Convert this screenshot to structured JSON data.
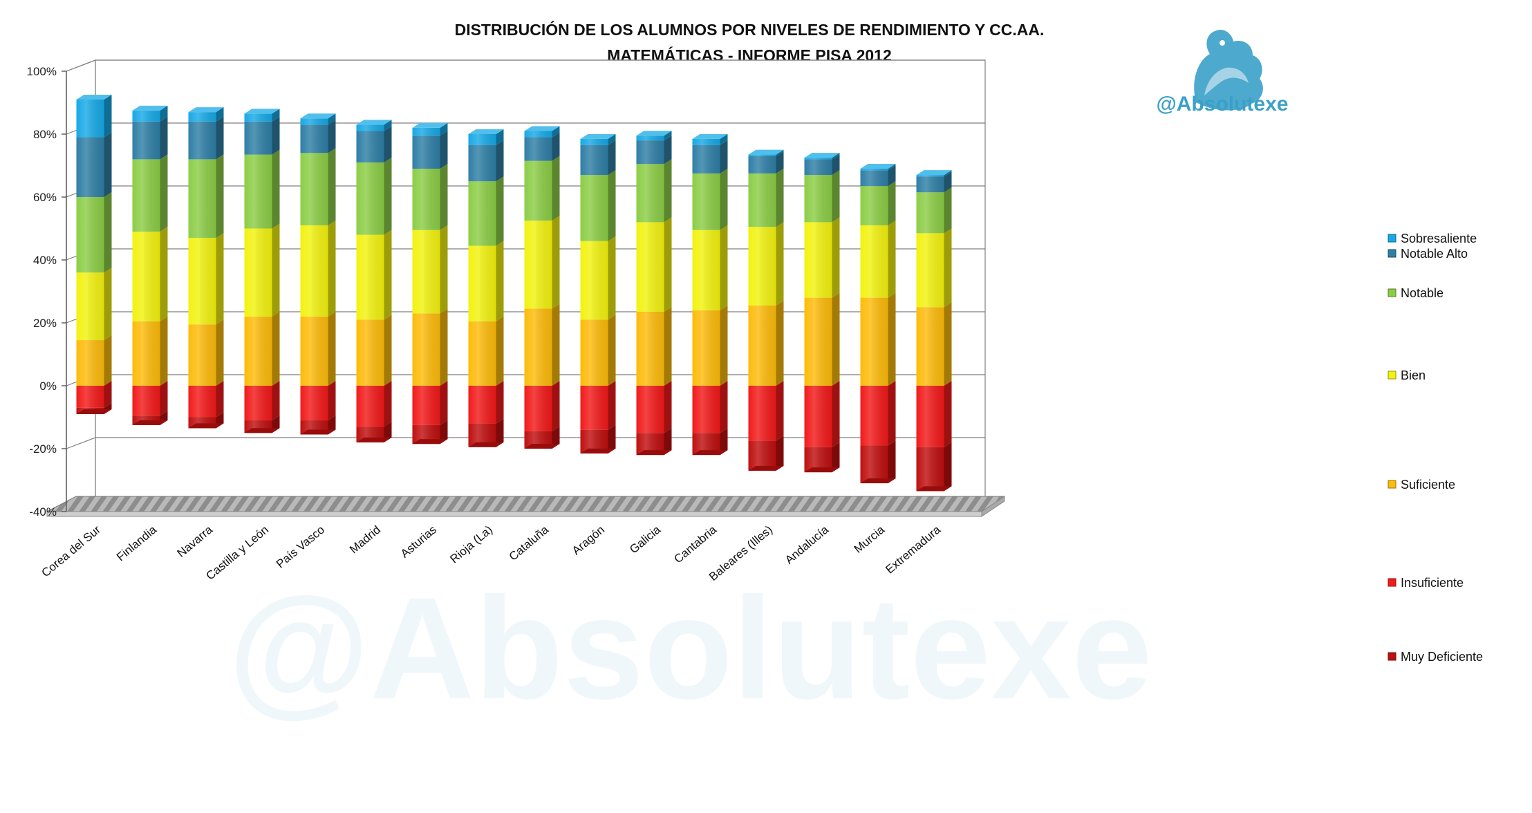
{
  "chart_data": {
    "type": "bar",
    "stacked": true,
    "title": "DISTRIBUCIÓN DE LOS ALUMNOS POR NIVELES DE RENDIMIENTO Y CC.AA.",
    "subtitle": "MATEMÁTICAS - INFORME PISA 2012",
    "watermark": "@Absolutexe",
    "watermark_icon": "griffin-icon",
    "ylim": [
      -40,
      100
    ],
    "yticks": [
      "100%",
      "80%",
      "60%",
      "40%",
      "20%",
      "0%",
      "-20%",
      "-40%"
    ],
    "grid": true,
    "legend_position": "right",
    "categories": [
      "Corea del Sur",
      "Finlandia",
      "Navarra",
      "Castilla y León",
      "País Vasco",
      "Madrid",
      "Asturias",
      "Rioja (La)",
      "Cataluña",
      "Aragón",
      "Galicia",
      "Cantabria",
      "Baleares (Illes)",
      "Andalucía",
      "Murcia",
      "Extremadura"
    ],
    "series": [
      {
        "name": "Sobresaliente",
        "color": "#17a9e6",
        "values": [
          12,
          3.5,
          3,
          2.5,
          2,
          2,
          2.5,
          3.5,
          2,
          2,
          1.5,
          2,
          0.5,
          0.5,
          0.5,
          0.5
        ]
      },
      {
        "name": "Notable Alto",
        "color": "#2f7fa6",
        "values": [
          19,
          12,
          12,
          10.5,
          9,
          10,
          10.5,
          11.5,
          7.5,
          9.5,
          7.5,
          9,
          5.5,
          5,
          5,
          5
        ]
      },
      {
        "name": "Notable",
        "color": "#8ccd46",
        "values": [
          24,
          23,
          25,
          23.5,
          23,
          23,
          19.5,
          20.5,
          19,
          21,
          18.5,
          18,
          17,
          15,
          12.5,
          13
        ]
      },
      {
        "name": "Bien",
        "color": "#f2f20f",
        "values": [
          21.5,
          28.5,
          27.5,
          28,
          29,
          27,
          26.5,
          24,
          28,
          25,
          28.5,
          25.5,
          25,
          24,
          23,
          23.5
        ]
      },
      {
        "name": "Suficiente",
        "color": "#fdbb0a",
        "values": [
          14.5,
          20.5,
          19.5,
          22,
          22,
          21,
          23,
          20.5,
          24.5,
          21,
          23.5,
          24,
          25.5,
          28,
          28,
          25
        ]
      },
      {
        "name": "Insuficiente",
        "color": "#f21a1a",
        "values": [
          -7,
          -9.5,
          -10,
          -11,
          -11,
          -13,
          -12.5,
          -12,
          -14.5,
          -14,
          -15,
          -15,
          -17.5,
          -19.5,
          -19,
          -19.5
        ]
      },
      {
        "name": "Muy Deficiente",
        "color": "#bf0f0f",
        "values": [
          -2,
          -3,
          -3.5,
          -4,
          -4.5,
          -5,
          -6,
          -7.5,
          -5.5,
          -7.5,
          -7,
          -7,
          -9.5,
          -8,
          -12,
          -14
        ]
      }
    ]
  }
}
